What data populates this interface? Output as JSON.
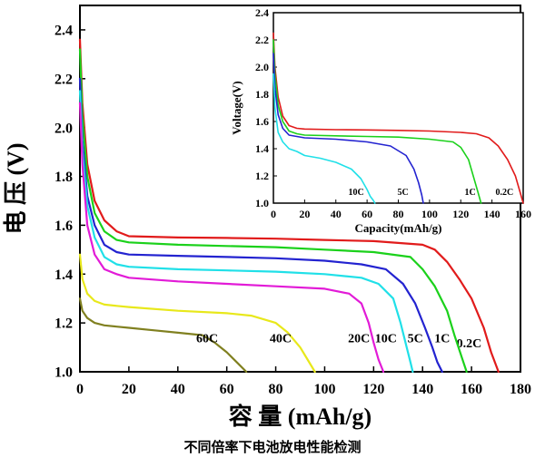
{
  "caption": "不同倍率下电池放电性能检测",
  "chart_data": [
    {
      "type": "line",
      "title": "",
      "xlabel": "容  量 (mAh/g)",
      "ylabel": "电  压 (V)",
      "xlim": [
        0,
        180
      ],
      "ylim": [
        1.0,
        2.5
      ],
      "xticks": [
        "0",
        "20",
        "40",
        "60",
        "80",
        "100",
        "120",
        "140",
        "160",
        "180"
      ],
      "yticks": [
        "1.0",
        "1.2",
        "1.4",
        "1.6",
        "1.8",
        "2.0",
        "2.2",
        "2.4"
      ],
      "series": [
        {
          "name": "0.2C",
          "color": "#e11b1b",
          "label_text": "0.2C",
          "label_at": [
            159,
            1.1
          ],
          "x": [
            0,
            1,
            3,
            6,
            10,
            15,
            20,
            40,
            60,
            80,
            100,
            120,
            140,
            145,
            150,
            155,
            160,
            165,
            168,
            171
          ],
          "y": [
            2.36,
            2.1,
            1.85,
            1.7,
            1.62,
            1.575,
            1.555,
            1.55,
            1.548,
            1.545,
            1.54,
            1.535,
            1.52,
            1.5,
            1.45,
            1.38,
            1.3,
            1.18,
            1.08,
            1.0
          ]
        },
        {
          "name": "1C",
          "color": "#1bd11b",
          "label_text": "1C",
          "label_at": [
            148,
            1.12
          ],
          "x": [
            0,
            1,
            3,
            6,
            10,
            15,
            20,
            40,
            60,
            80,
            100,
            120,
            135,
            140,
            145,
            150,
            153,
            156,
            158
          ],
          "y": [
            2.32,
            2.05,
            1.8,
            1.65,
            1.575,
            1.54,
            1.53,
            1.52,
            1.515,
            1.51,
            1.5,
            1.49,
            1.47,
            1.42,
            1.35,
            1.25,
            1.15,
            1.06,
            1.0
          ]
        },
        {
          "name": "5C",
          "color": "#2323d0",
          "label_text": "5C",
          "label_at": [
            137,
            1.12
          ],
          "x": [
            0,
            1,
            3,
            6,
            10,
            15,
            20,
            40,
            60,
            80,
            100,
            115,
            125,
            132,
            137,
            141,
            144,
            146,
            148
          ],
          "y": [
            2.2,
            1.95,
            1.72,
            1.6,
            1.52,
            1.49,
            1.48,
            1.475,
            1.47,
            1.465,
            1.455,
            1.44,
            1.42,
            1.36,
            1.28,
            1.18,
            1.1,
            1.04,
            1.0
          ]
        },
        {
          "name": "10C",
          "color": "#20e0e8",
          "label_text": "10C",
          "label_at": [
            125,
            1.12
          ],
          "x": [
            0,
            1,
            3,
            6,
            10,
            15,
            20,
            40,
            60,
            80,
            100,
            115,
            122,
            128,
            131,
            133,
            135,
            136
          ],
          "y": [
            2.15,
            1.9,
            1.68,
            1.55,
            1.47,
            1.44,
            1.43,
            1.42,
            1.415,
            1.41,
            1.4,
            1.385,
            1.36,
            1.3,
            1.2,
            1.12,
            1.04,
            1.0
          ]
        },
        {
          "name": "20C",
          "color": "#e21bd7",
          "label_text": "20C",
          "label_at": [
            114,
            1.12
          ],
          "x": [
            0,
            1,
            3,
            6,
            10,
            15,
            20,
            40,
            60,
            80,
            100,
            110,
            115,
            118,
            120,
            122,
            124
          ],
          "y": [
            2.1,
            1.85,
            1.6,
            1.48,
            1.42,
            1.4,
            1.385,
            1.37,
            1.36,
            1.35,
            1.34,
            1.32,
            1.28,
            1.2,
            1.12,
            1.05,
            1.0
          ]
        },
        {
          "name": "40C",
          "color": "#e8e81b",
          "label_text": "40C",
          "label_at": [
            82,
            1.12
          ],
          "x": [
            0,
            1,
            3,
            6,
            10,
            15,
            20,
            40,
            60,
            70,
            80,
            85,
            90,
            93,
            96
          ],
          "y": [
            1.48,
            1.38,
            1.32,
            1.29,
            1.275,
            1.27,
            1.265,
            1.25,
            1.24,
            1.23,
            1.2,
            1.16,
            1.1,
            1.05,
            1.0
          ]
        },
        {
          "name": "60C",
          "color": "#808020",
          "label_text": "60C",
          "label_at": [
            52,
            1.12
          ],
          "x": [
            0,
            1,
            3,
            6,
            10,
            15,
            20,
            30,
            40,
            50,
            55,
            60,
            64,
            68
          ],
          "y": [
            1.3,
            1.25,
            1.22,
            1.2,
            1.19,
            1.185,
            1.18,
            1.17,
            1.16,
            1.15,
            1.12,
            1.08,
            1.04,
            1.0
          ]
        }
      ]
    },
    {
      "type": "line",
      "title": "",
      "xlabel": "Capacity(mAh/g)",
      "ylabel": "Voltage(V)",
      "xlim": [
        0,
        160
      ],
      "ylim": [
        1.0,
        2.4
      ],
      "xticks": [
        "0",
        "20",
        "40",
        "60",
        "80",
        "100",
        "120",
        "140",
        "160"
      ],
      "yticks": [
        "1.0",
        "1.2",
        "1.4",
        "1.6",
        "1.8",
        "2.0",
        "2.2",
        "2.4"
      ],
      "series": [
        {
          "name": "0.2C",
          "color": "#e11b1b",
          "label_text": "0.2C",
          "label_at": [
            148,
            1.06
          ],
          "x": [
            0,
            1,
            3,
            6,
            10,
            15,
            20,
            40,
            60,
            80,
            100,
            120,
            130,
            138,
            144,
            150,
            155,
            158,
            160
          ],
          "y": [
            2.25,
            2.0,
            1.78,
            1.64,
            1.57,
            1.55,
            1.545,
            1.54,
            1.538,
            1.535,
            1.53,
            1.52,
            1.51,
            1.48,
            1.42,
            1.32,
            1.2,
            1.08,
            1.0
          ]
        },
        {
          "name": "1C",
          "color": "#1bd11b",
          "label_text": "1C",
          "label_at": [
            126,
            1.06
          ],
          "x": [
            0,
            1,
            3,
            6,
            10,
            15,
            20,
            40,
            60,
            80,
            100,
            115,
            120,
            125,
            128,
            131,
            133
          ],
          "y": [
            2.2,
            1.95,
            1.72,
            1.6,
            1.53,
            1.51,
            1.5,
            1.495,
            1.49,
            1.485,
            1.47,
            1.45,
            1.41,
            1.32,
            1.2,
            1.08,
            1.0
          ]
        },
        {
          "name": "5C",
          "color": "#2323d0",
          "label_text": "5C",
          "label_at": [
            83,
            1.06
          ],
          "x": [
            0,
            1,
            3,
            6,
            10,
            15,
            20,
            40,
            60,
            75,
            85,
            90,
            93,
            95,
            96
          ],
          "y": [
            2.1,
            1.85,
            1.65,
            1.55,
            1.5,
            1.49,
            1.48,
            1.47,
            1.45,
            1.42,
            1.35,
            1.25,
            1.15,
            1.06,
            1.0
          ]
        },
        {
          "name": "10C",
          "color": "#20e0e8",
          "label_text": "10C",
          "label_at": [
            53,
            1.06
          ],
          "x": [
            0,
            1,
            3,
            6,
            10,
            15,
            20,
            30,
            40,
            50,
            56,
            60,
            62,
            64,
            65
          ],
          "y": [
            1.95,
            1.7,
            1.52,
            1.45,
            1.4,
            1.38,
            1.35,
            1.33,
            1.3,
            1.25,
            1.18,
            1.1,
            1.05,
            1.02,
            1.0
          ]
        }
      ]
    }
  ]
}
